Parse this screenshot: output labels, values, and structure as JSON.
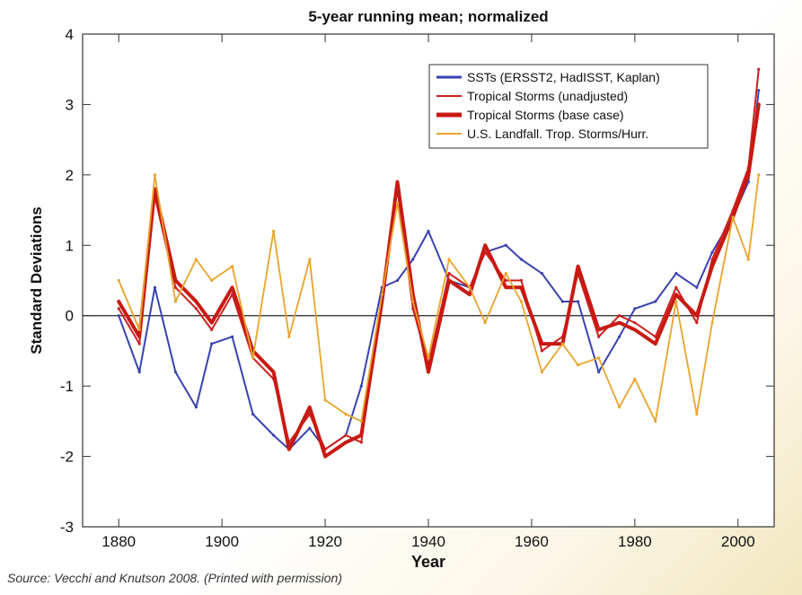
{
  "source_note": "Source: Vecchi and Knutson 2008. (Printed with permission)",
  "chart_data": {
    "type": "line",
    "title": "5-year running mean; normalized",
    "xlabel": "Year",
    "ylabel": "Standard Deviations",
    "xlim": [
      1873,
      2007
    ],
    "ylim": [
      -3,
      4
    ],
    "xticks": [
      1880,
      1900,
      1920,
      1940,
      1960,
      1980,
      2000
    ],
    "yticks": [
      -3,
      -2,
      -1,
      0,
      1,
      2,
      3,
      4
    ],
    "grid": false,
    "zero_line": true,
    "legend_position": "top-right",
    "legend": [
      {
        "label": "SSTs (ERSST2, HadISST, Kaplan)",
        "color": "#3a42b0"
      },
      {
        "label": "Tropical Storms (unadjusted)",
        "color": "#cc2020"
      },
      {
        "label": "Tropical Storms (base case)",
        "color": "#c81a12"
      },
      {
        "label": "U.S. Landfall. Trop. Storms/Hurr.",
        "color": "#e8a42c"
      }
    ],
    "x": [
      1880,
      1884,
      1887,
      1891,
      1895,
      1898,
      1902,
      1906,
      1910,
      1913,
      1917,
      1920,
      1924,
      1927,
      1931,
      1934,
      1937,
      1940,
      1944,
      1948,
      1951,
      1955,
      1958,
      1962,
      1966,
      1969,
      1973,
      1977,
      1980,
      1984,
      1988,
      1992,
      1995,
      1999,
      2002,
      2004
    ],
    "series": [
      {
        "name": "SSTs (ERSST2, HadISST, Kaplan)",
        "color": "#3a42b0",
        "values": [
          0.0,
          -0.8,
          0.4,
          -0.8,
          -1.3,
          -0.4,
          -0.3,
          -1.4,
          -1.7,
          -1.9,
          -1.6,
          -1.9,
          -1.7,
          -1.0,
          0.4,
          0.5,
          0.8,
          1.2,
          0.5,
          0.4,
          0.9,
          1.0,
          0.8,
          0.6,
          0.2,
          0.2,
          -0.8,
          -0.3,
          0.1,
          0.2,
          0.6,
          0.4,
          0.9,
          1.4,
          1.9,
          3.2
        ]
      },
      {
        "name": "Tropical Storms (unadjusted)",
        "color": "#cc2020",
        "values": [
          0.1,
          -0.4,
          1.7,
          0.4,
          0.1,
          -0.2,
          0.3,
          -0.6,
          -0.9,
          -1.8,
          -1.4,
          -1.9,
          -1.7,
          -1.8,
          0.3,
          1.8,
          0.1,
          -0.7,
          0.6,
          0.4,
          0.9,
          0.5,
          0.5,
          -0.5,
          -0.3,
          0.6,
          -0.3,
          0.0,
          -0.1,
          -0.3,
          0.4,
          -0.1,
          0.8,
          1.5,
          2.1,
          3.5
        ]
      },
      {
        "name": "Tropical Storms (base case)",
        "color": "#c81a12",
        "values": [
          0.2,
          -0.3,
          1.8,
          0.5,
          0.2,
          -0.1,
          0.4,
          -0.5,
          -0.8,
          -1.9,
          -1.3,
          -2.0,
          -1.8,
          -1.7,
          0.2,
          1.9,
          0.3,
          -0.8,
          0.5,
          0.3,
          1.0,
          0.4,
          0.4,
          -0.4,
          -0.4,
          0.7,
          -0.2,
          -0.1,
          -0.2,
          -0.4,
          0.3,
          0.0,
          0.7,
          1.4,
          2.0,
          3.0
        ]
      },
      {
        "name": "U.S. Landfall. Trop. Storms/Hurr.",
        "color": "#e8a42c",
        "values": [
          0.5,
          -0.2,
          2.0,
          0.2,
          0.8,
          0.5,
          0.7,
          -0.6,
          1.2,
          -0.3,
          0.8,
          -1.2,
          -1.4,
          -1.5,
          0.3,
          1.6,
          0.2,
          -0.6,
          0.8,
          0.4,
          -0.1,
          0.6,
          0.2,
          -0.8,
          -0.4,
          -0.7,
          -0.6,
          -1.3,
          -0.9,
          -1.5,
          0.2,
          -1.4,
          -0.1,
          1.4,
          0.8,
          2.0
        ]
      }
    ]
  }
}
